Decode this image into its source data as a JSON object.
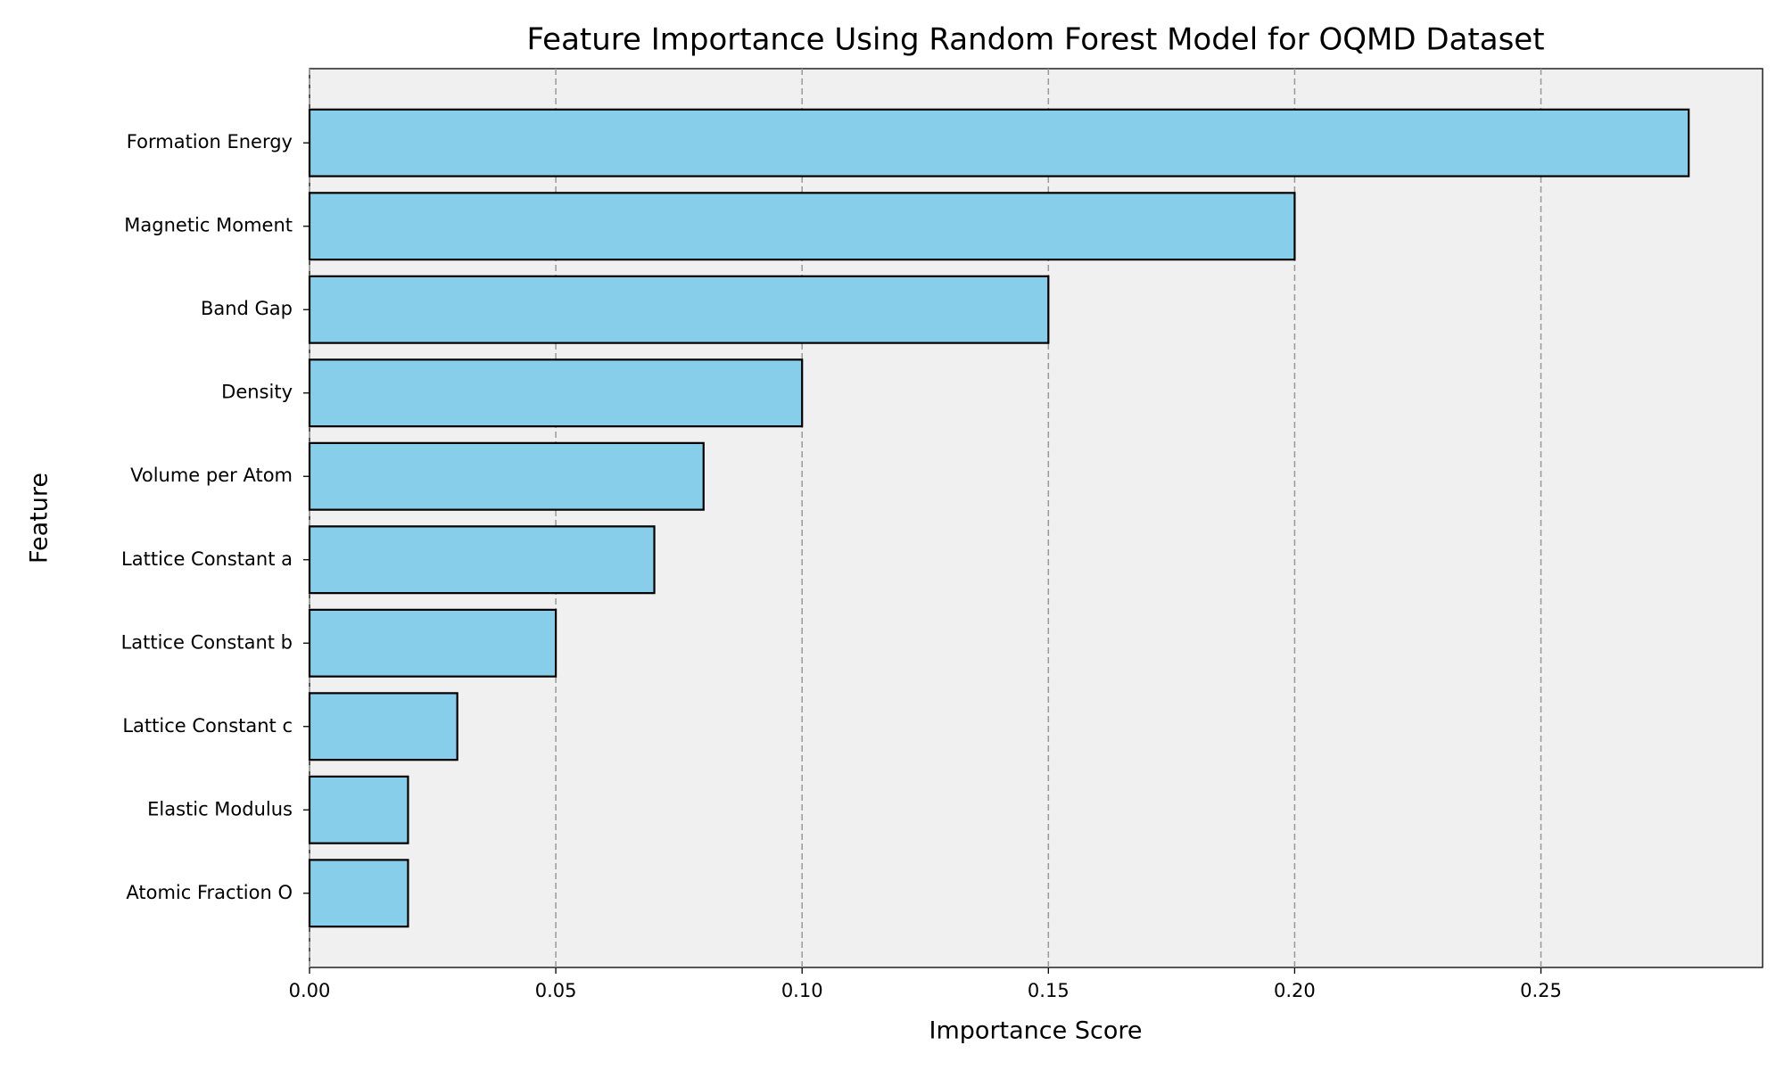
{
  "chart_data": {
    "type": "barh",
    "title": "Feature Importance Using Random Forest Model for OQMD Dataset",
    "x_label": "Importance Score",
    "y_label": "Feature",
    "categories": [
      "Formation Energy",
      "Magnetic Moment",
      "Band Gap",
      "Density",
      "Volume per Atom",
      "Lattice Constant a",
      "Lattice Constant b",
      "Lattice Constant c",
      "Elastic Modulus",
      "Atomic Fraction O"
    ],
    "values": [
      0.28,
      0.2,
      0.15,
      0.1,
      0.08,
      0.07,
      0.05,
      0.03,
      0.02,
      0.02
    ],
    "color": "#87ceeb",
    "edge_color": "#000000",
    "background": "#f0f0f0",
    "xlim": [
      0,
      0.295
    ],
    "xticks": [
      {
        "value": 0,
        "label": "0.00"
      },
      {
        "value": 0.05,
        "label": "0.05"
      },
      {
        "value": 0.1,
        "label": "0.10"
      },
      {
        "value": 0.15,
        "label": "0.15"
      },
      {
        "value": 0.2,
        "label": "0.20"
      },
      {
        "value": 0.25,
        "label": "0.25"
      }
    ],
    "grid": true
  }
}
